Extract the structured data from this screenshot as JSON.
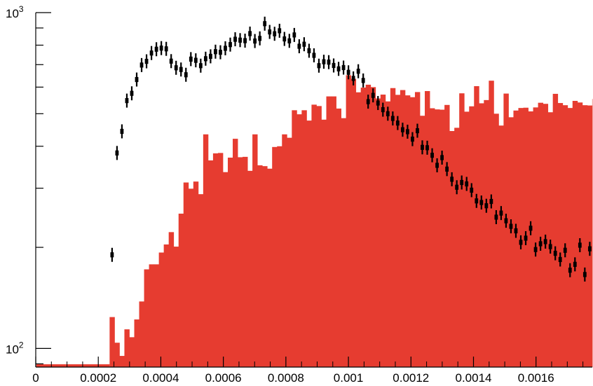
{
  "chart_data": {
    "type": "bar",
    "title": "",
    "xlabel": "",
    "ylabel": "",
    "y_scale": "log",
    "xlim": [
      0,
      0.00178
    ],
    "ylim": [
      88,
      1000
    ],
    "grid": false,
    "x_tick_labels": [
      "0",
      "0.0002",
      "0.0004",
      "0.0006",
      "0.0008",
      "0.001",
      "0.0012",
      "0.0014",
      "0.0016"
    ],
    "x_tick_values": [
      0,
      0.0002,
      0.0004,
      0.0006,
      0.0008,
      0.001,
      0.0012,
      0.0014,
      0.0016
    ],
    "y_tick_labels": [
      {
        "base": "10",
        "exp": "2",
        "value": 100
      },
      {
        "base": "10",
        "exp": "3",
        "value": 1000
      }
    ],
    "bin_width": 1.575e-05,
    "series": [
      {
        "kind": "histogram",
        "color": "#e63c30",
        "x_start": 0.00023622,
        "values": [
          124,
          104,
          95,
          114,
          108,
          122,
          138,
          172,
          178,
          178,
          193,
          204,
          222,
          201,
          252,
          312,
          299,
          314,
          288,
          434,
          363,
          381,
          382,
          335,
          370,
          421,
          371,
          372,
          338,
          434,
          351,
          349,
          343,
          398,
          400,
          434,
          424,
          512,
          498,
          512,
          477,
          532,
          527,
          480,
          563,
          563,
          518,
          485,
          651,
          635,
          579,
          598,
          610,
          600,
          555,
          570,
          544,
          596,
          569,
          588,
          567,
          560,
          580,
          493,
          584,
          519,
          515,
          514,
          531,
          444,
          454,
          575,
          507,
          526,
          604,
          537,
          549,
          627,
          500,
          461,
          574,
          488,
          511,
          520,
          521,
          508,
          522,
          539,
          535,
          505,
          573,
          538,
          530,
          520,
          546,
          540,
          530,
          529,
          553,
          524
        ]
      },
      {
        "kind": "points",
        "color": "#000000",
        "x_start": 0.00023622,
        "values": [
          190,
          382,
          443,
          547,
          575,
          632,
          698,
          716,
          758,
          778,
          784,
          780,
          717,
          685,
          677,
          653,
          727,
          721,
          695,
          729,
          741,
          765,
          762,
          783,
          803,
          833,
          828,
          825,
          866,
          823,
          838,
          927,
          876,
          865,
          883,
          835,
          824,
          858,
          794,
          805,
          770,
          746,
          695,
          714,
          712,
          696,
          680,
          686,
          664,
          637,
          669,
          628,
          543,
          567,
          538,
          514,
          500,
          484,
          469,
          448,
          442,
          420,
          445,
          397,
          396,
          376,
          351,
          370,
          342,
          319,
          302,
          312,
          309,
          296,
          275,
          272,
          266,
          274,
          246,
          253,
          240,
          231,
          224,
          207,
          213,
          228,
          197,
          205,
          208,
          201,
          192,
          184,
          196,
          171,
          178,
          203,
          166,
          198,
          180,
          170
        ]
      }
    ]
  }
}
